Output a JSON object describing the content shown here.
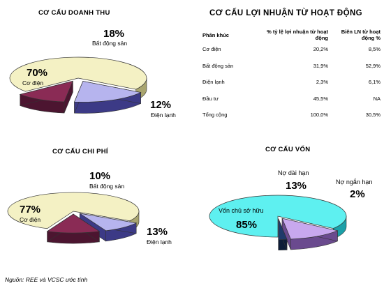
{
  "colors": {
    "co_dien": "#f4f1c4",
    "co_dien_side": "#a9a56f",
    "bat_dong_san": "#b6b4ee",
    "bat_dong_san_side": "#3c3a86",
    "dien_lanh": "#8a2b55",
    "dien_lanh_side": "#4c1530",
    "von_chu": "#5ef0f0",
    "von_chu_side": "#1aa0a8",
    "no_dai_han": "#c8a8ee",
    "no_dai_han_side": "#6a4a8e",
    "no_ngan_han": "#1f3a6a",
    "no_ngan_han_side": "#0d1d38"
  },
  "chart_data": [
    {
      "type": "pie",
      "title": "CƠ CẤU DOANH THU",
      "slices": [
        {
          "label": "Cơ điện",
          "value": 70,
          "text": "70%"
        },
        {
          "label": "Bất động sản",
          "value": 18,
          "text": "18%"
        },
        {
          "label": "Điện lạnh",
          "value": 12,
          "text": "12%"
        }
      ]
    },
    {
      "type": "table",
      "title": "CƠ CẤU LỢI NHUẬN TỪ HOẠT ĐỘNG",
      "columns": [
        "Phân khúc",
        "% tỷ lệ lợi nhuận từ hoạt động",
        "Biên LN từ hoạt động %"
      ],
      "rows": [
        [
          "Cơ điện",
          "20,2%",
          "8,5%"
        ],
        [
          "Bất động sản",
          "31,9%",
          "52,9%"
        ],
        [
          "Điện lạnh",
          "2,3%",
          "6,1%"
        ],
        [
          "Đầu tư",
          "45,5%",
          "NA"
        ],
        [
          "Tổng cộng",
          "100,0%",
          "30,5%"
        ]
      ]
    },
    {
      "type": "pie",
      "title": "CƠ CẤU CHI PHÍ",
      "slices": [
        {
          "label": "Cơ điện",
          "value": 77,
          "text": "77%"
        },
        {
          "label": "Bất động sản",
          "value": 10,
          "text": "10%"
        },
        {
          "label": "Điện lạnh",
          "value": 13,
          "text": "13%"
        }
      ]
    },
    {
      "type": "pie",
      "title": "CƠ CẤU VỐN",
      "slices": [
        {
          "label": "Vốn chủ sở hữu",
          "value": 85,
          "text": "85%"
        },
        {
          "label": "Nợ dài hạn",
          "value": 13,
          "text": "13%"
        },
        {
          "label": "Nợ ngắn hạn",
          "value": 2,
          "text": "2%"
        }
      ]
    }
  ],
  "source_note": "Nguồn: REE và VCSC ước tính"
}
